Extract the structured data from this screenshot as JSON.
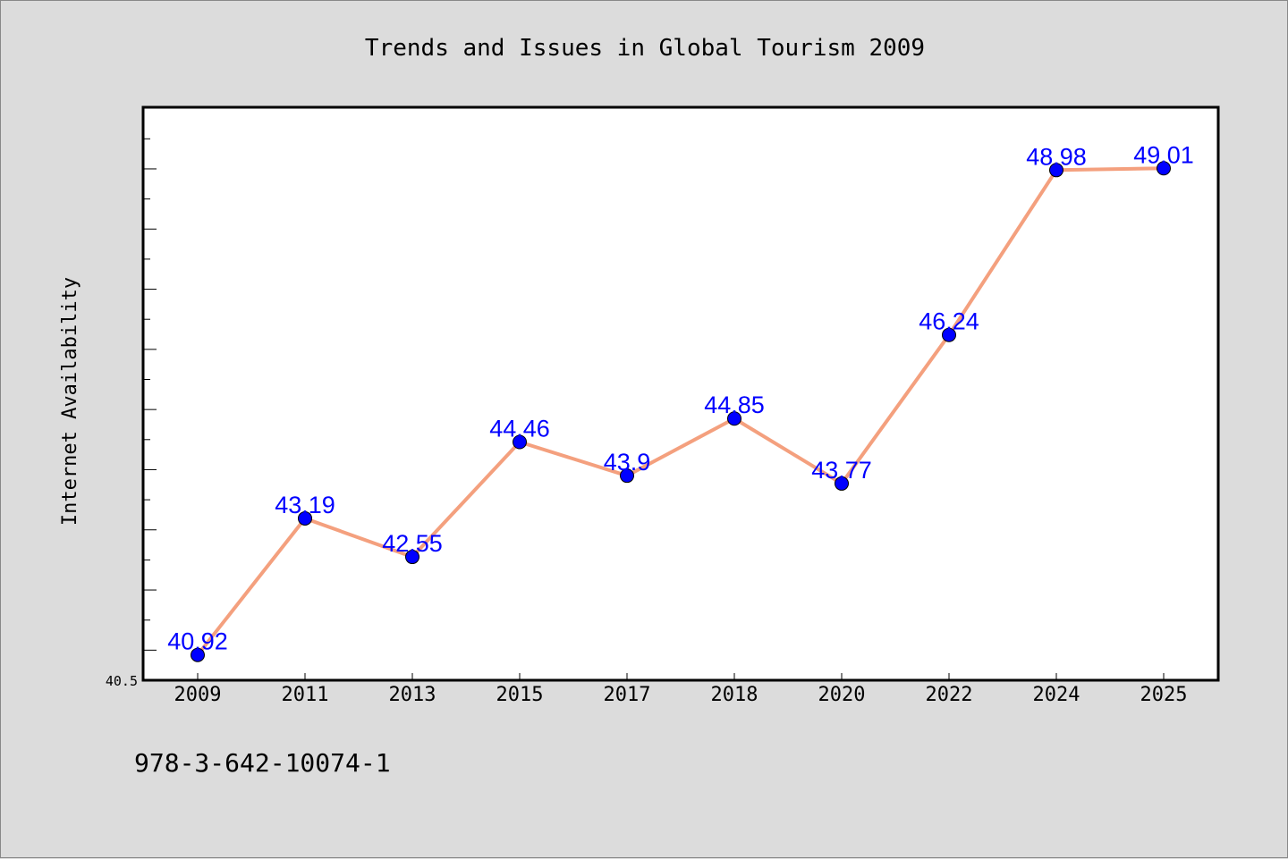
{
  "chart_data": {
    "type": "line",
    "title": "Trends and Issues in Global Tourism 2009",
    "xlabel": "",
    "ylabel": "Internet Availability",
    "categories": [
      "2009",
      "2011",
      "2013",
      "2015",
      "2017",
      "2018",
      "2020",
      "2022",
      "2024",
      "2025"
    ],
    "series": [
      {
        "values": [
          40.92,
          43.19,
          42.55,
          44.46,
          43.9,
          44.85,
          43.77,
          46.24,
          48.98,
          49.01
        ],
        "labels": [
          "40.92",
          "43.19",
          "42.55",
          "44.46",
          "43.9",
          "44.85",
          "43.77",
          "46.24",
          "48.98",
          "49.01"
        ],
        "line_color": "#f4a07e",
        "marker_color": "#0000ff"
      }
    ],
    "ylim": [
      40.5,
      50.0
    ],
    "y_tick_label": "40.5",
    "grid": false,
    "legend": false
  },
  "footer": {
    "isbn": "978-3-642-10074-1"
  },
  "colors": {
    "background": "#dcdcdc",
    "plot_background": "#ffffff",
    "line": "#f4a07e",
    "marker": "#0000ff",
    "data_label": "#0000ff"
  }
}
